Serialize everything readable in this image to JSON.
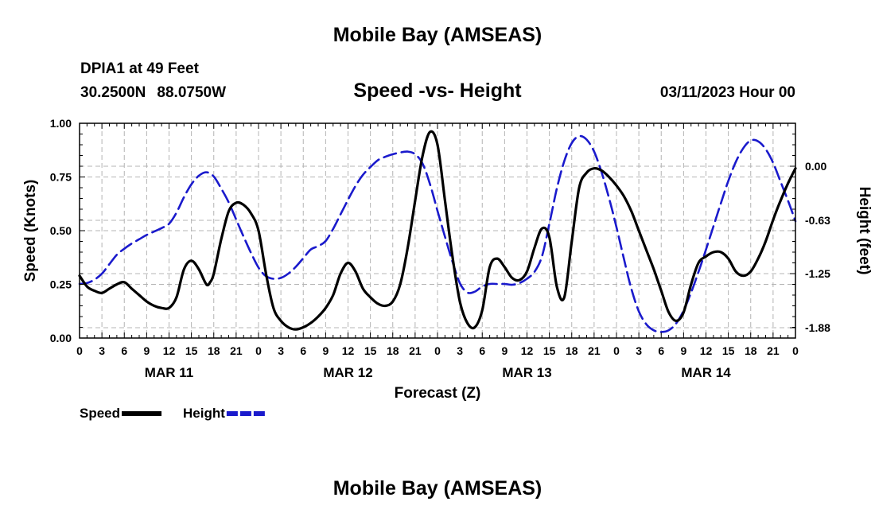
{
  "header": {
    "title": "Mobile Bay (AMSEAS)",
    "station": "DPIA1 at 49 Feet",
    "lat": "30.2500N",
    "lon": "88.0750W",
    "subtitle": "Speed -vs- Height",
    "datetime": "03/11/2023 Hour 00"
  },
  "footer": {
    "title": "Mobile Bay (AMSEAS)"
  },
  "chart_data": {
    "type": "line",
    "title": "Speed -vs- Height",
    "xlabel": "Forecast (Z)",
    "ylabel": "Speed (Knots)",
    "y2label": "Height (feet)",
    "xlim": [
      0,
      96
    ],
    "ylim": [
      0,
      1
    ],
    "y2lim": [
      -2.0,
      0.5
    ],
    "grid": true,
    "x_tick_labels": [
      "0",
      "3",
      "6",
      "9",
      "12",
      "15",
      "18",
      "21",
      "0",
      "3",
      "6",
      "9",
      "12",
      "15",
      "18",
      "21",
      "0",
      "3",
      "6",
      "9",
      "12",
      "15",
      "18",
      "21",
      "0",
      "3",
      "6",
      "9",
      "12",
      "15",
      "18",
      "21",
      "0"
    ],
    "day_labels": [
      {
        "label": "MAR 11",
        "x": 12
      },
      {
        "label": "MAR 12",
        "x": 36
      },
      {
        "label": "MAR 13",
        "x": 60
      },
      {
        "label": "MAR 14",
        "x": 84
      }
    ],
    "y_ticks": [
      0,
      0.25,
      0.5,
      0.75,
      1.0
    ],
    "y_tick_labels": [
      "0.00",
      "0.25",
      "0.50",
      "0.75",
      "1.00"
    ],
    "y2_ticks": [
      0.0,
      -0.63,
      -1.25,
      -1.88
    ],
    "y2_tick_labels": [
      "0.00",
      "-0.63",
      "-1.25",
      "-1.88"
    ],
    "legend": [
      {
        "name": "Speed",
        "color": "#000000",
        "style": "solid"
      },
      {
        "name": "Height",
        "color": "#1a1acc",
        "style": "dashed"
      }
    ],
    "legend_position": "bottom-left",
    "series": [
      {
        "name": "Speed",
        "axis": "left",
        "color": "#000000",
        "points": [
          [
            0,
            0.29
          ],
          [
            1,
            0.24
          ],
          [
            2,
            0.22
          ],
          [
            3,
            0.21
          ],
          [
            4,
            0.23
          ],
          [
            5,
            0.25
          ],
          [
            6,
            0.26
          ],
          [
            7,
            0.23
          ],
          [
            8,
            0.2
          ],
          [
            9,
            0.17
          ],
          [
            10,
            0.15
          ],
          [
            11,
            0.14
          ],
          [
            12,
            0.14
          ],
          [
            13,
            0.19
          ],
          [
            14,
            0.32
          ],
          [
            15,
            0.36
          ],
          [
            16,
            0.32
          ],
          [
            17,
            0.25
          ],
          [
            17.5,
            0.26
          ],
          [
            18,
            0.3
          ],
          [
            19,
            0.46
          ],
          [
            20,
            0.59
          ],
          [
            21,
            0.63
          ],
          [
            22,
            0.62
          ],
          [
            23,
            0.58
          ],
          [
            24,
            0.5
          ],
          [
            25,
            0.3
          ],
          [
            26,
            0.14
          ],
          [
            27,
            0.08
          ],
          [
            28,
            0.05
          ],
          [
            29,
            0.04
          ],
          [
            30,
            0.05
          ],
          [
            31,
            0.07
          ],
          [
            32,
            0.1
          ],
          [
            33,
            0.14
          ],
          [
            34,
            0.2
          ],
          [
            35,
            0.3
          ],
          [
            36,
            0.35
          ],
          [
            37,
            0.31
          ],
          [
            38,
            0.23
          ],
          [
            39,
            0.19
          ],
          [
            40,
            0.16
          ],
          [
            41,
            0.15
          ],
          [
            42,
            0.17
          ],
          [
            43,
            0.25
          ],
          [
            44,
            0.42
          ],
          [
            45,
            0.64
          ],
          [
            46,
            0.85
          ],
          [
            47,
            0.96
          ],
          [
            48,
            0.9
          ],
          [
            49,
            0.64
          ],
          [
            50,
            0.38
          ],
          [
            51,
            0.17
          ],
          [
            52,
            0.07
          ],
          [
            53,
            0.05
          ],
          [
            54,
            0.13
          ],
          [
            55,
            0.33
          ],
          [
            56,
            0.37
          ],
          [
            57,
            0.33
          ],
          [
            58,
            0.28
          ],
          [
            59,
            0.27
          ],
          [
            60,
            0.31
          ],
          [
            61,
            0.42
          ],
          [
            62,
            0.51
          ],
          [
            63,
            0.47
          ],
          [
            64,
            0.24
          ],
          [
            65,
            0.19
          ],
          [
            66,
            0.45
          ],
          [
            67,
            0.7
          ],
          [
            68,
            0.77
          ],
          [
            69,
            0.79
          ],
          [
            70,
            0.78
          ],
          [
            71,
            0.75
          ],
          [
            72,
            0.71
          ],
          [
            73,
            0.66
          ],
          [
            74,
            0.59
          ],
          [
            75,
            0.5
          ],
          [
            76,
            0.41
          ],
          [
            77,
            0.32
          ],
          [
            78,
            0.22
          ],
          [
            79,
            0.12
          ],
          [
            80,
            0.08
          ],
          [
            81,
            0.12
          ],
          [
            82,
            0.25
          ],
          [
            83,
            0.35
          ],
          [
            84,
            0.38
          ],
          [
            85,
            0.4
          ],
          [
            86,
            0.4
          ],
          [
            87,
            0.37
          ],
          [
            88,
            0.31
          ],
          [
            89,
            0.29
          ],
          [
            90,
            0.31
          ],
          [
            91,
            0.37
          ],
          [
            92,
            0.45
          ],
          [
            93,
            0.55
          ],
          [
            94,
            0.64
          ],
          [
            95,
            0.72
          ],
          [
            96,
            0.79
          ]
        ]
      },
      {
        "name": "Height",
        "axis": "right",
        "color": "#1a1acc",
        "points": [
          [
            0,
            -1.37
          ],
          [
            1,
            -1.36
          ],
          [
            2,
            -1.32
          ],
          [
            3,
            -1.25
          ],
          [
            4,
            -1.14
          ],
          [
            5,
            -1.03
          ],
          [
            6,
            -0.96
          ],
          [
            7,
            -0.9
          ],
          [
            8,
            -0.85
          ],
          [
            9,
            -0.8
          ],
          [
            10,
            -0.76
          ],
          [
            11,
            -0.72
          ],
          [
            12,
            -0.67
          ],
          [
            13,
            -0.54
          ],
          [
            14,
            -0.36
          ],
          [
            15,
            -0.21
          ],
          [
            16,
            -0.11
          ],
          [
            17,
            -0.07
          ],
          [
            18,
            -0.12
          ],
          [
            19,
            -0.26
          ],
          [
            20,
            -0.42
          ],
          [
            21,
            -0.62
          ],
          [
            22,
            -0.82
          ],
          [
            23,
            -1.01
          ],
          [
            24,
            -1.18
          ],
          [
            25,
            -1.28
          ],
          [
            26,
            -1.31
          ],
          [
            27,
            -1.3
          ],
          [
            28,
            -1.25
          ],
          [
            29,
            -1.17
          ],
          [
            30,
            -1.07
          ],
          [
            31,
            -0.97
          ],
          [
            32,
            -0.93
          ],
          [
            33,
            -0.87
          ],
          [
            34,
            -0.73
          ],
          [
            35,
            -0.56
          ],
          [
            36,
            -0.39
          ],
          [
            37,
            -0.23
          ],
          [
            38,
            -0.1
          ],
          [
            39,
            -0.01
          ],
          [
            40,
            0.07
          ],
          [
            41,
            0.11
          ],
          [
            42,
            0.14
          ],
          [
            43,
            0.16
          ],
          [
            44,
            0.17
          ],
          [
            45,
            0.14
          ],
          [
            46,
            0.03
          ],
          [
            47,
            -0.21
          ],
          [
            48,
            -0.52
          ],
          [
            49,
            -0.82
          ],
          [
            50,
            -1.11
          ],
          [
            51,
            -1.36
          ],
          [
            52,
            -1.47
          ],
          [
            53,
            -1.46
          ],
          [
            54,
            -1.4
          ],
          [
            55,
            -1.37
          ],
          [
            56,
            -1.37
          ],
          [
            57,
            -1.37
          ],
          [
            58,
            -1.38
          ],
          [
            59,
            -1.36
          ],
          [
            60,
            -1.31
          ],
          [
            61,
            -1.23
          ],
          [
            62,
            -1.05
          ],
          [
            63,
            -0.67
          ],
          [
            64,
            -0.26
          ],
          [
            65,
            0.06
          ],
          [
            66,
            0.27
          ],
          [
            67,
            0.35
          ],
          [
            68,
            0.31
          ],
          [
            69,
            0.17
          ],
          [
            70,
            -0.07
          ],
          [
            71,
            -0.37
          ],
          [
            72,
            -0.71
          ],
          [
            73,
            -1.08
          ],
          [
            74,
            -1.43
          ],
          [
            75,
            -1.69
          ],
          [
            76,
            -1.84
          ],
          [
            77,
            -1.91
          ],
          [
            78,
            -1.93
          ],
          [
            79,
            -1.91
          ],
          [
            80,
            -1.83
          ],
          [
            81,
            -1.68
          ],
          [
            82,
            -1.47
          ],
          [
            83,
            -1.23
          ],
          [
            84,
            -0.97
          ],
          [
            85,
            -0.7
          ],
          [
            86,
            -0.43
          ],
          [
            87,
            -0.17
          ],
          [
            88,
            0.05
          ],
          [
            89,
            0.21
          ],
          [
            90,
            0.3
          ],
          [
            91,
            0.29
          ],
          [
            92,
            0.2
          ],
          [
            93,
            0.04
          ],
          [
            94,
            -0.18
          ],
          [
            95,
            -0.4
          ],
          [
            96,
            -0.64
          ]
        ]
      }
    ]
  }
}
